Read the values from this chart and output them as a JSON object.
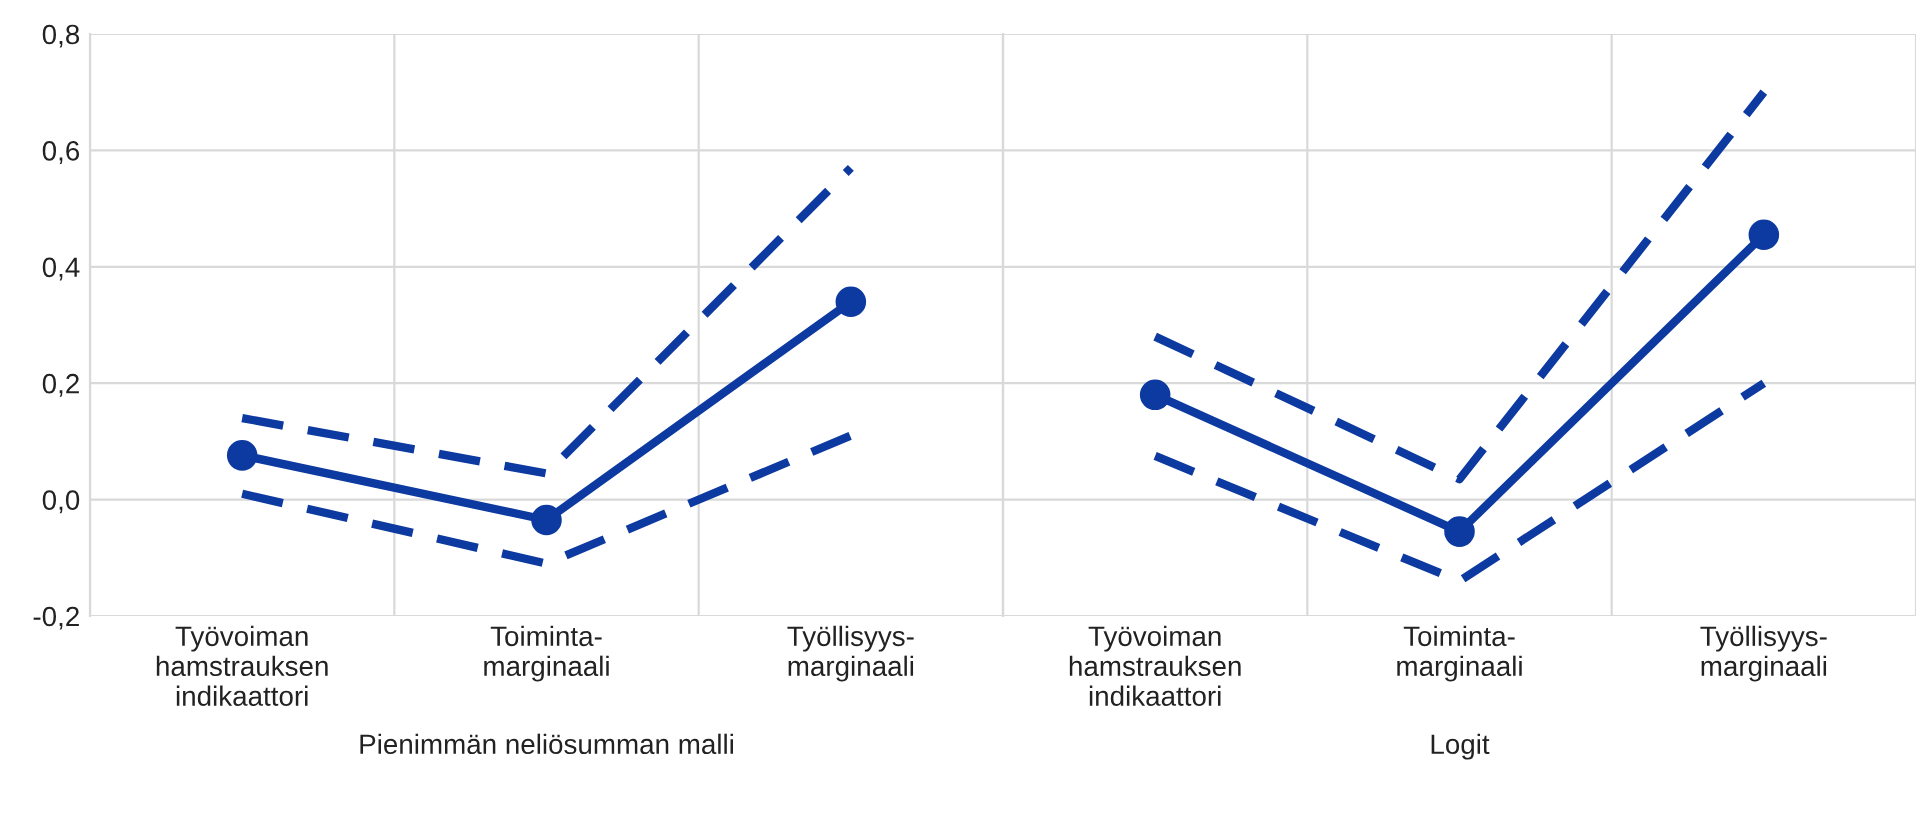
{
  "chart_data": [
    {
      "type": "line",
      "categories": [
        "Työvoiman\nhamstrauksen\nindikaattori",
        "Toiminta-\nmarginaali",
        "Työllisyys-\nmarginaali"
      ],
      "xlabel": "Pienimmän neliösumman malli",
      "ylim": [
        -0.2,
        0.8
      ],
      "yticks": [
        {
          "value": -0.2,
          "label": "-0,2"
        },
        {
          "value": 0,
          "label": "0,0"
        },
        {
          "value": 0.2,
          "label": "0,2"
        },
        {
          "value": 0.4,
          "label": "0,4"
        },
        {
          "value": 0.6,
          "label": "0,6"
        },
        {
          "value": 0.8,
          "label": "0,8"
        }
      ],
      "grid": true,
      "series": [
        {
          "color": "#0d3aa0",
          "values": [
            0.076,
            -0.035,
            0.34
          ],
          "marker": "circle",
          "line_style": "solid"
        },
        {
          "color": "#0d3aa0",
          "values": [
            0.14,
            0.045,
            0.57
          ],
          "marker": "none",
          "line_style": "dashed"
        },
        {
          "color": "#0d3aa0",
          "values": [
            0.01,
            -0.11,
            0.11
          ],
          "marker": "none",
          "line_style": "dashed"
        }
      ]
    },
    {
      "type": "line",
      "categories": [
        "Työvoiman\nhamstrauksen\nindikaattori",
        "Toiminta-\nmarginaali",
        "Työllisyys-\nmarginaali"
      ],
      "xlabel": "Logit",
      "ylim": [
        -0.2,
        0.8
      ],
      "tick_labels": "x",
      "grid": true,
      "series": [
        {
          "color": "#0d3aa0",
          "values": [
            0.18,
            -0.055,
            0.455
          ],
          "marker": "circle",
          "line_style": "solid"
        },
        {
          "color": "#0d3aa0",
          "values": [
            0.28,
            0.035,
            0.7
          ],
          "marker": "none",
          "line_style": "dashed"
        },
        {
          "color": "#0d3aa0",
          "values": [
            0.075,
            -0.14,
            0.2
          ],
          "marker": "none",
          "line_style": "dashed"
        }
      ]
    }
  ]
}
